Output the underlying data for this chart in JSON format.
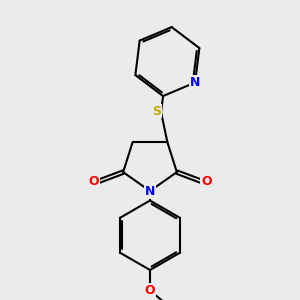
{
  "background_color": "#ebebeb",
  "bond_color": "#000000",
  "bond_width": 1.5,
  "atom_colors": {
    "N": "#0000ff",
    "O": "#ff0000",
    "S": "#ccaa00",
    "C": "#000000"
  },
  "font_size": 9,
  "figsize": [
    3.0,
    3.0
  ],
  "dpi": 100
}
